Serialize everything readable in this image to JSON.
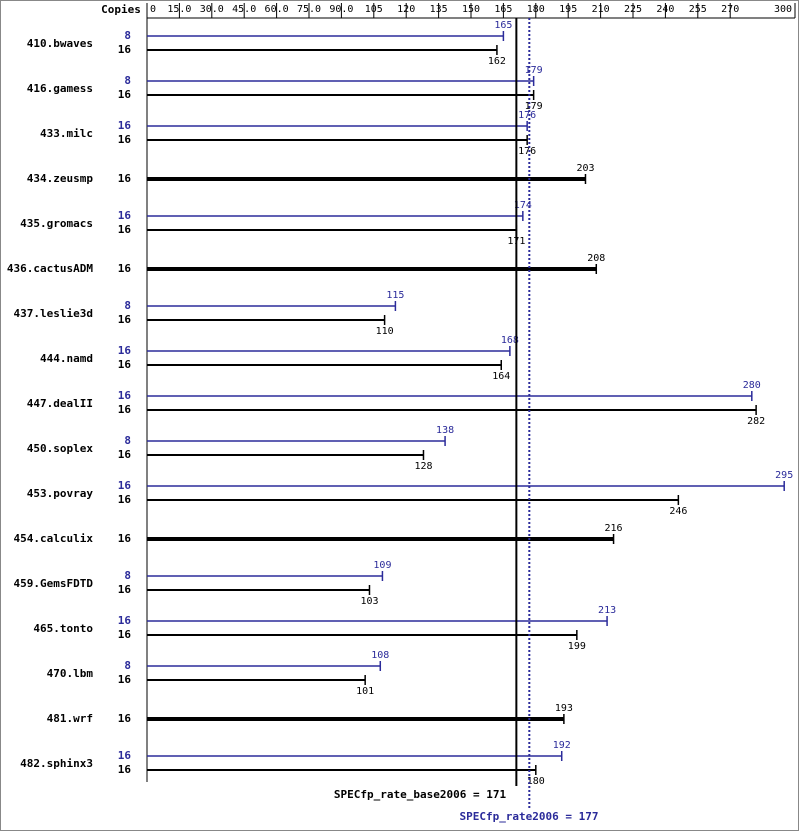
{
  "chart_data": {
    "type": "bar",
    "copies_label": "Copies",
    "categories": [
      "410.bwaves",
      "416.gamess",
      "433.milc",
      "434.zeusmp",
      "435.gromacs",
      "436.cactusADM",
      "437.leslie3d",
      "444.namd",
      "447.dealII",
      "450.soplex",
      "453.povray",
      "454.calculix",
      "459.GemsFDTD",
      "465.tonto",
      "470.lbm",
      "481.wrf",
      "482.sphinx3"
    ],
    "series": [
      {
        "color": "#2b2b9a",
        "copies": [
          8,
          8,
          16,
          null,
          16,
          null,
          8,
          16,
          16,
          8,
          16,
          null,
          8,
          16,
          8,
          null,
          16
        ],
        "values": [
          165,
          179,
          176,
          null,
          174,
          null,
          115,
          168,
          280,
          138,
          295,
          null,
          109,
          213,
          108,
          null,
          192
        ]
      },
      {
        "color": "#000000",
        "copies": [
          16,
          16,
          16,
          16,
          16,
          16,
          16,
          16,
          16,
          16,
          16,
          16,
          16,
          16,
          16,
          16,
          16
        ],
        "values": [
          162,
          179,
          176,
          203,
          171,
          208,
          110,
          164,
          282,
          128,
          246,
          216,
          103,
          199,
          101,
          193,
          180
        ]
      }
    ],
    "xlim": [
      0,
      300
    ],
    "xticks": [
      0,
      {
        "value": 15,
        "label": "15.0"
      },
      {
        "value": 30,
        "label": "30.0"
      },
      {
        "value": 45,
        "label": "45.0"
      },
      {
        "value": 60,
        "label": "60.0"
      },
      {
        "value": 75,
        "label": "75.0"
      },
      {
        "value": 90,
        "label": "90.0"
      },
      105,
      120,
      135,
      150,
      165,
      180,
      195,
      210,
      225,
      240,
      255,
      270,
      300
    ],
    "base_label": "SPECfp_rate_base2006 =",
    "base_score": 171,
    "peak_label": "SPECfp_rate2006 =",
    "peak_score": 177
  }
}
